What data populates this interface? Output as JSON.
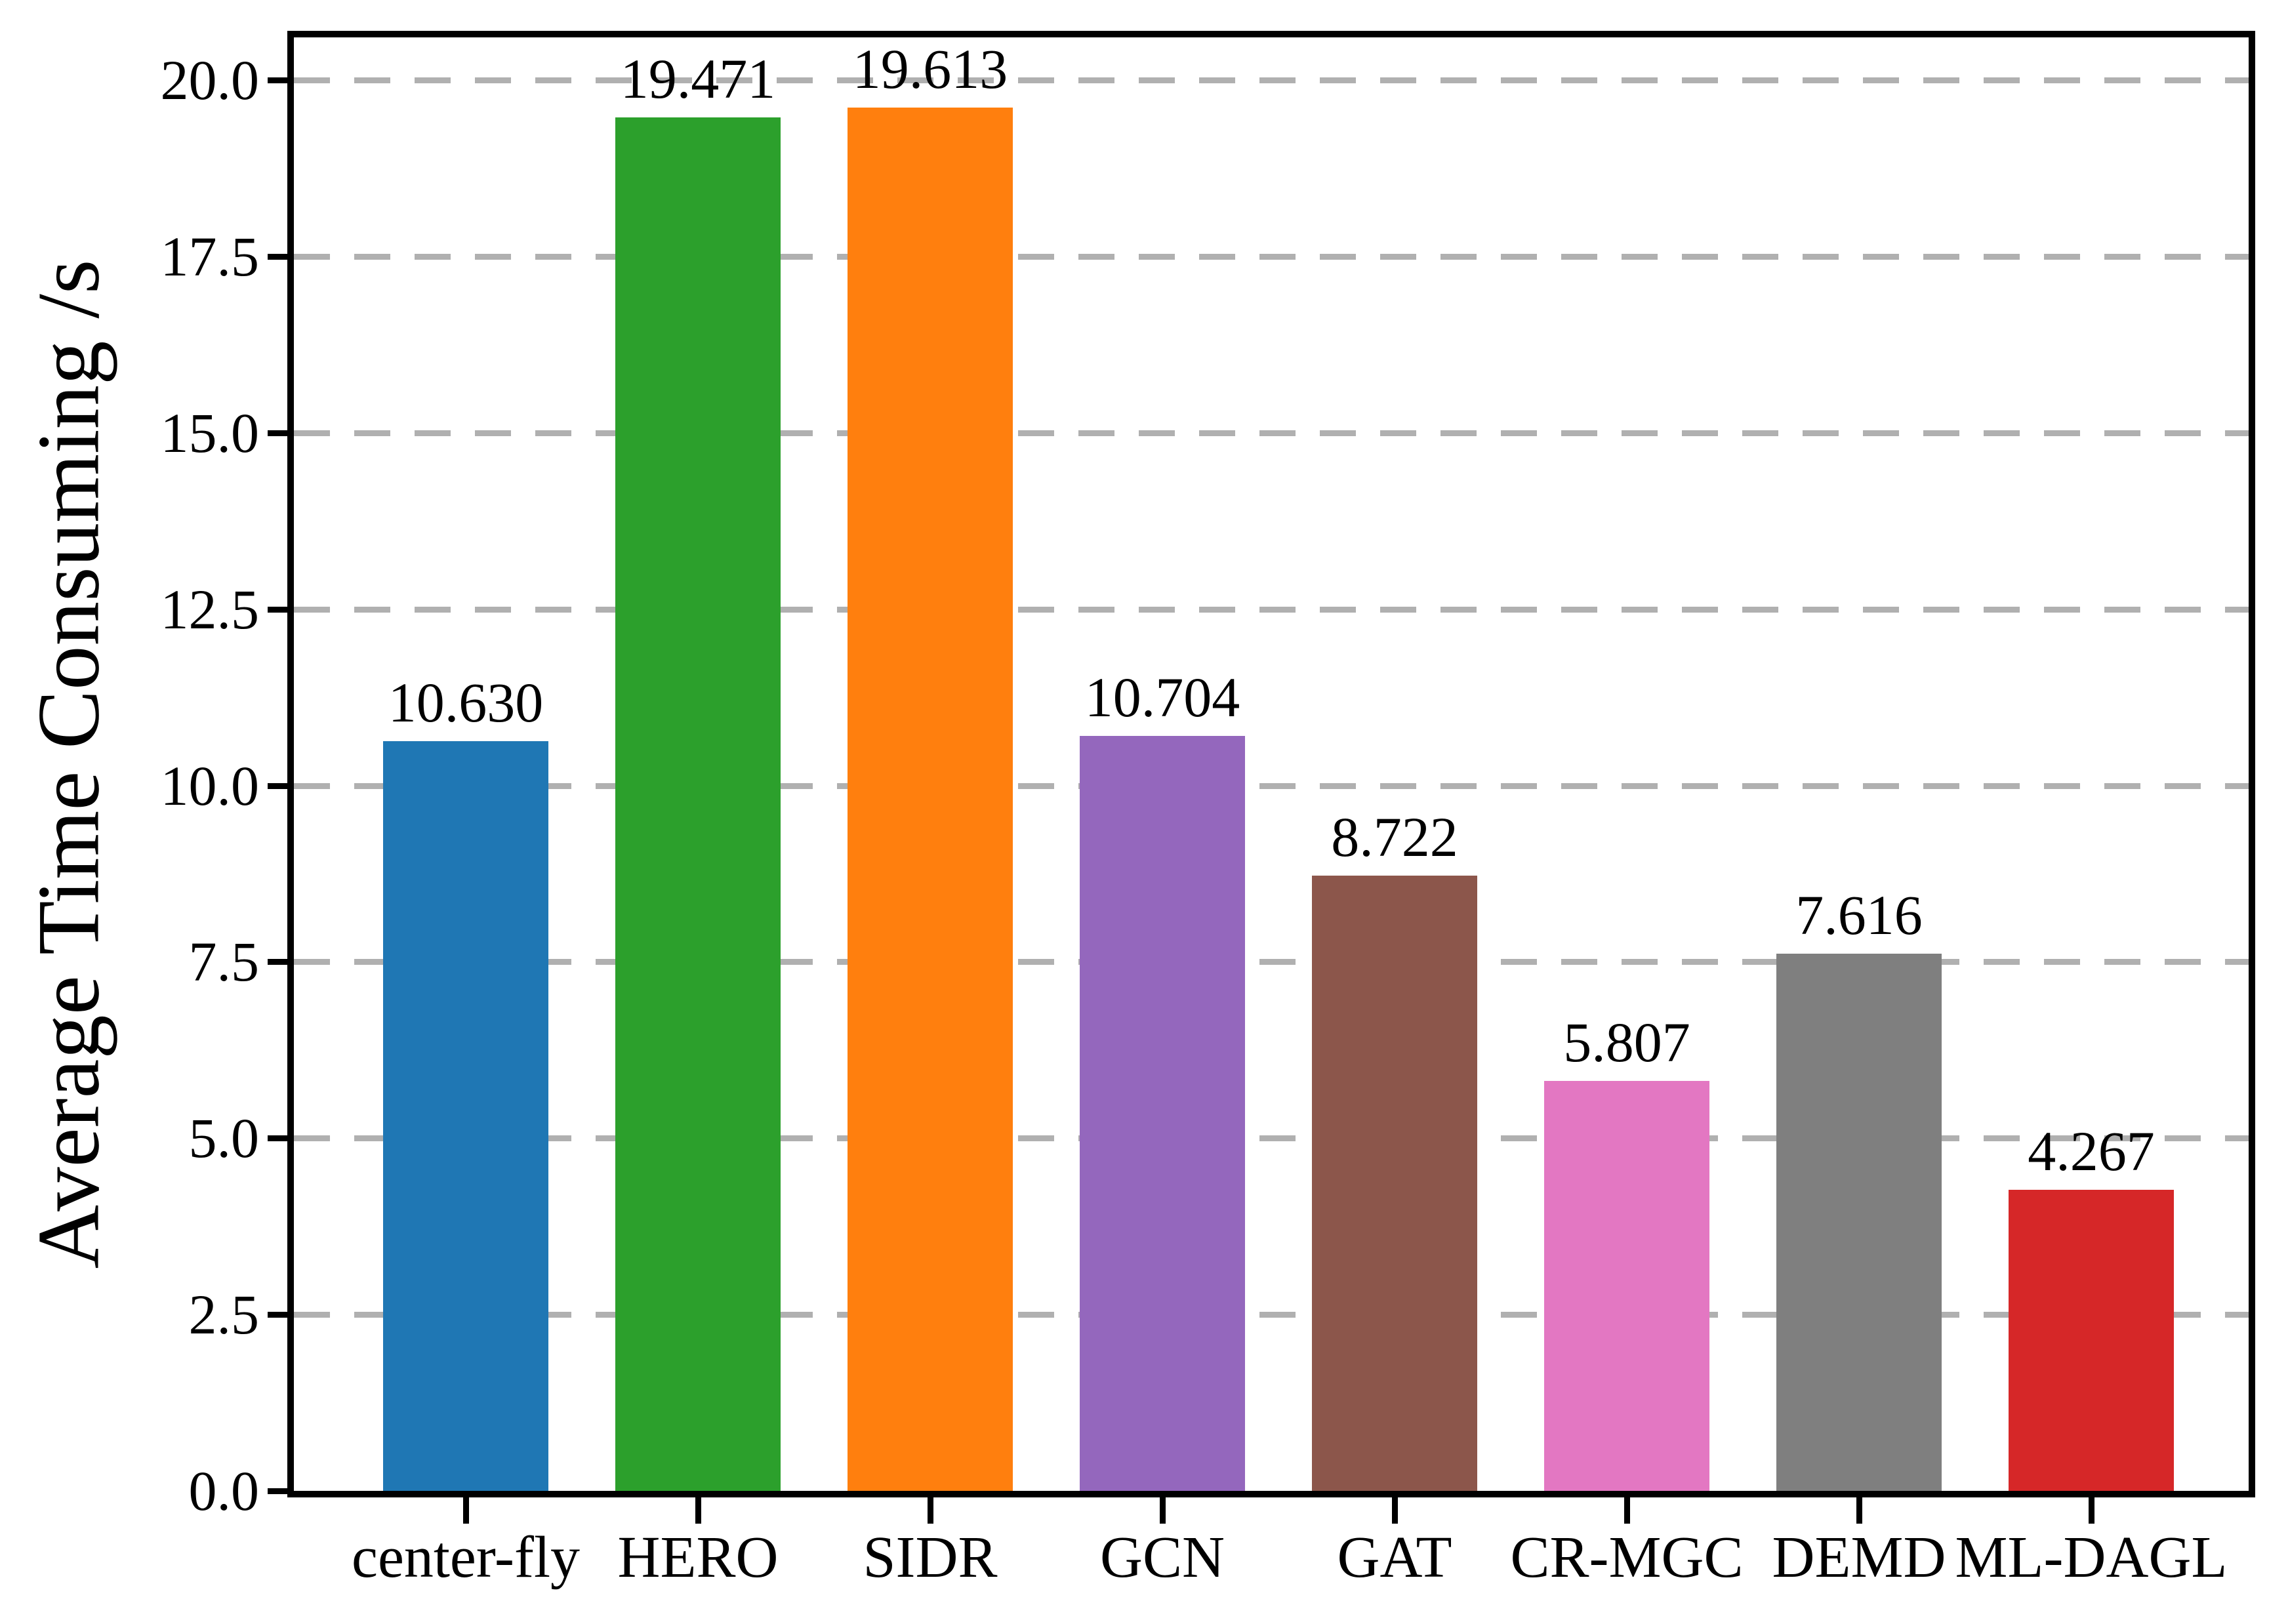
{
  "chart_data": {
    "type": "bar",
    "title": "",
    "xlabel": "",
    "ylabel": "Average Time Consuming /s",
    "categories": [
      "center-fly",
      "HERO",
      "SIDR",
      "GCN",
      "GAT",
      "CR-MGC",
      "DEMD",
      "ML-DAGL"
    ],
    "values": [
      10.63,
      19.471,
      19.613,
      10.704,
      8.722,
      5.807,
      7.616,
      4.267
    ],
    "value_labels": [
      "10.630",
      "19.471",
      "19.613",
      "10.704",
      "8.722",
      "5.807",
      "7.616",
      "4.267"
    ],
    "bar_colors": [
      "#1f77b4",
      "#2ca02c",
      "#ff7f0e",
      "#9467bd",
      "#8c564b",
      "#e377c2",
      "#7f7f7f",
      "#d62728"
    ],
    "ylim": [
      0.0,
      20.6
    ],
    "yticks": [
      0.0,
      2.5,
      5.0,
      7.5,
      10.0,
      12.5,
      15.0,
      17.5,
      20.0
    ],
    "ytick_labels": [
      "0.0",
      "2.5",
      "5.0",
      "7.5",
      "10.0",
      "12.5",
      "15.0",
      "17.5",
      "20.0"
    ],
    "grid": "horizontal dashed",
    "grid_color": "#b0b0b0",
    "axis_color": "#000000",
    "background_color": "#ffffff",
    "legend": "none"
  }
}
